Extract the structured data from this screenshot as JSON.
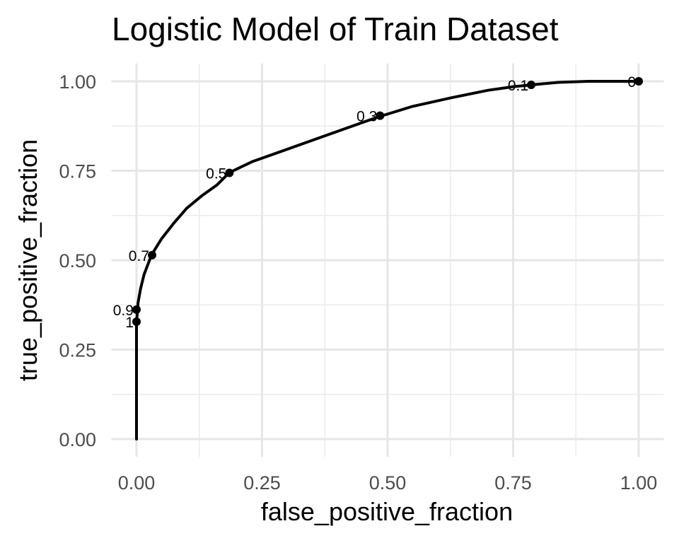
{
  "chart_data": {
    "type": "line",
    "title": "Logistic Model of Train Dataset",
    "xlabel": "false_positive_fraction",
    "ylabel": "true_positive_fraction",
    "xlim": [
      -0.05,
      1.05
    ],
    "ylim": [
      -0.05,
      1.05
    ],
    "x_ticks": [
      0,
      0.25,
      0.5,
      0.75,
      1
    ],
    "y_ticks": [
      0,
      0.25,
      0.5,
      0.75,
      1
    ],
    "x_tick_labels": [
      "0.00",
      "0.25",
      "0.50",
      "0.75",
      "1.00"
    ],
    "y_tick_labels": [
      "0.00",
      "0.25",
      "0.50",
      "0.75",
      "1.00"
    ],
    "grid": true,
    "curve": {
      "x": [
        0,
        0,
        0,
        0.003,
        0.008,
        0.015,
        0.03,
        0.05,
        0.075,
        0.1,
        0.13,
        0.16,
        0.185,
        0.23,
        0.3,
        0.38,
        0.44,
        0.485,
        0.55,
        0.63,
        0.7,
        0.75,
        0.785,
        0.84,
        0.9,
        1.0
      ],
      "y": [
        0,
        0.25,
        0.325,
        0.38,
        0.42,
        0.46,
        0.515,
        0.56,
        0.605,
        0.645,
        0.68,
        0.71,
        0.745,
        0.775,
        0.81,
        0.85,
        0.88,
        0.902,
        0.93,
        0.955,
        0.975,
        0.985,
        0.99,
        0.997,
        1.0,
        1.0
      ]
    },
    "cutoffs": [
      {
        "label": "1",
        "x": 0.0,
        "y": 0.328
      },
      {
        "label": "0.9",
        "x": 0.0,
        "y": 0.362
      },
      {
        "label": "0.7",
        "x": 0.031,
        "y": 0.514
      },
      {
        "label": "0.5",
        "x": 0.185,
        "y": 0.744
      },
      {
        "label": "0.3",
        "x": 0.485,
        "y": 0.904
      },
      {
        "label": "0.1",
        "x": 0.786,
        "y": 0.99
      },
      {
        "label": "0",
        "x": 1.0,
        "y": 1.0
      }
    ]
  }
}
